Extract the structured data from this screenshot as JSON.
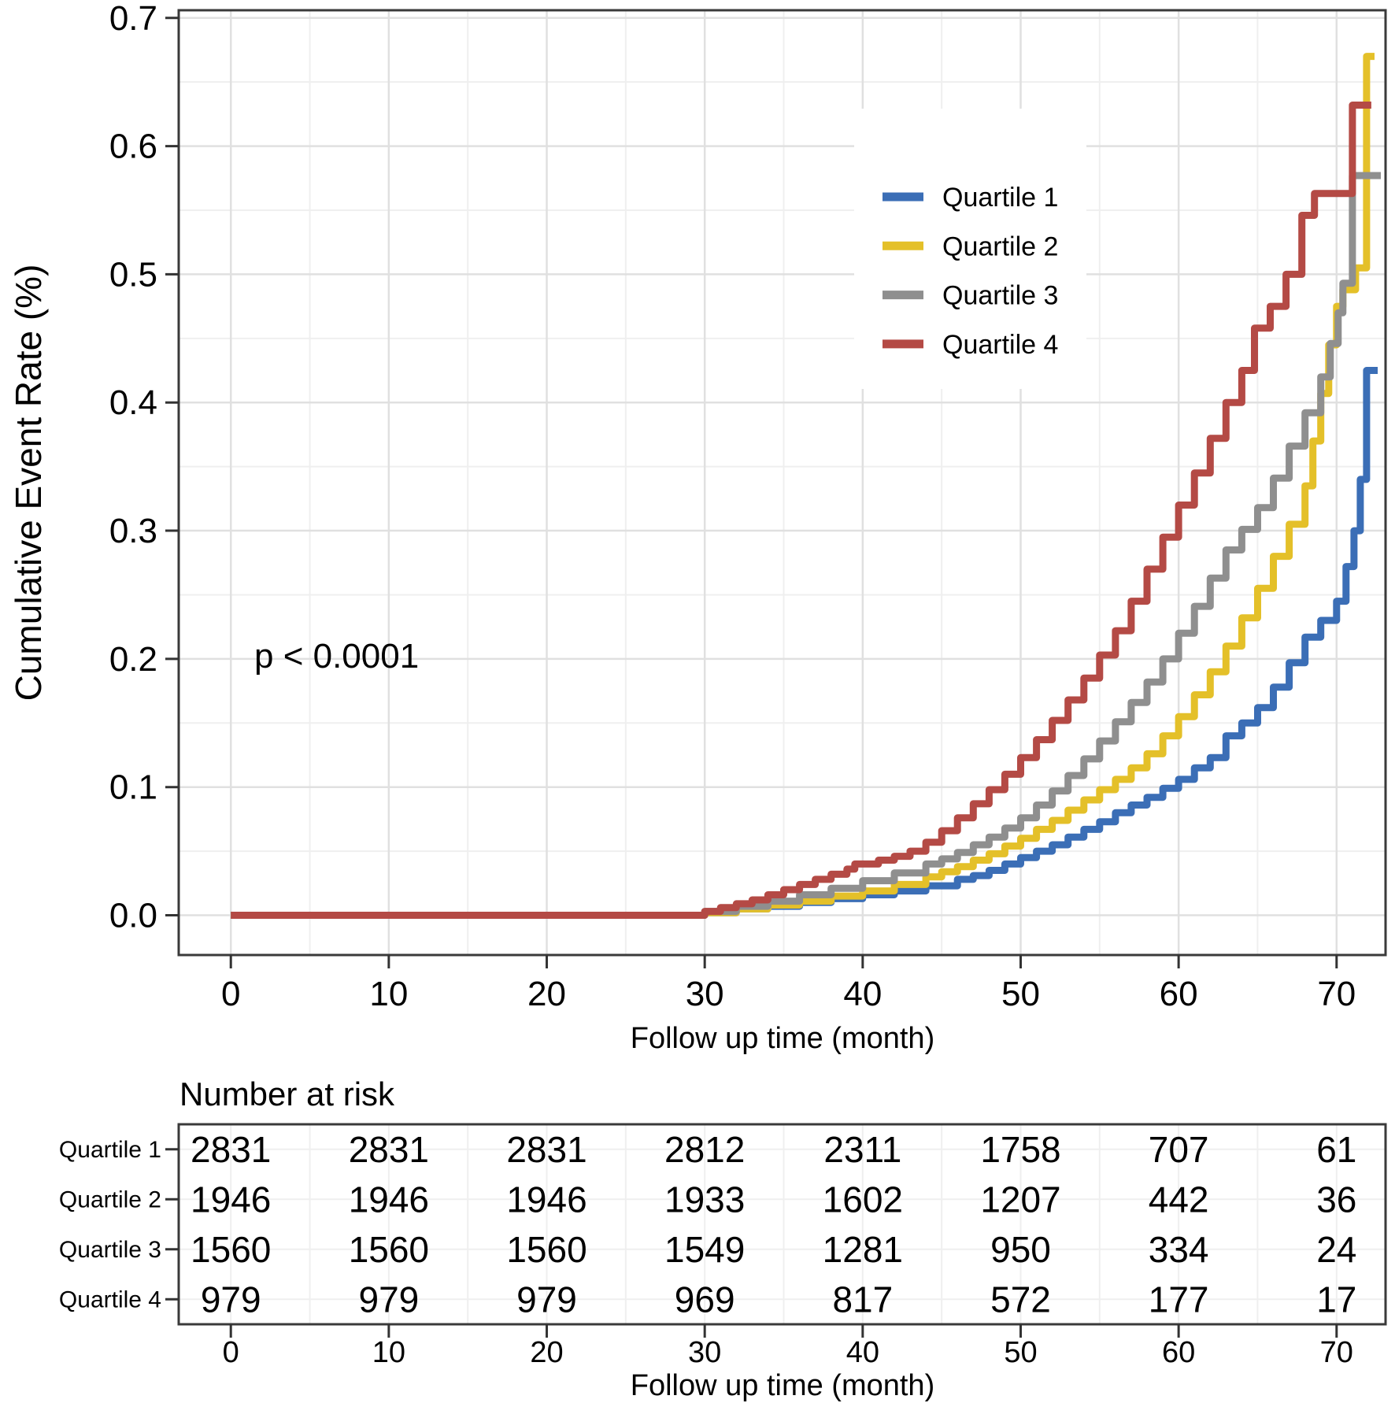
{
  "chart_data": {
    "type": "line",
    "subtype": "kaplan-meier-cumulative-incidence-step",
    "title": "",
    "xlabel": "Follow up time (month)",
    "ylabel": "Cumulative Event Rate (%)",
    "annotation": "p < 0.0001",
    "xlim": [
      -3.3,
      73.1
    ],
    "ylim": [
      -0.031,
      0.706
    ],
    "x_ticks": [
      0,
      10,
      20,
      30,
      40,
      50,
      60,
      70
    ],
    "x_minor_ticks": [
      5,
      15,
      25,
      35,
      45,
      55,
      65
    ],
    "y_ticks": [
      0.0,
      0.1,
      0.2,
      0.3,
      0.4,
      0.5,
      0.6,
      0.7
    ],
    "y_tick_labels": [
      "0.0",
      "0.1",
      "0.2",
      "0.3",
      "0.4",
      "0.5",
      "0.6",
      "0.7"
    ],
    "y_minor_ticks": [
      0.05,
      0.15,
      0.25,
      0.35,
      0.45,
      0.55,
      0.65
    ],
    "grid": true,
    "legend_position": "inside-top-right",
    "series": [
      {
        "name": "Quartile 1",
        "color": "#3B6EB6",
        "points": [
          [
            0,
            0
          ],
          [
            29,
            0
          ],
          [
            30,
            0.002
          ],
          [
            32,
            0.005
          ],
          [
            34,
            0.007
          ],
          [
            36,
            0.01
          ],
          [
            38,
            0.013
          ],
          [
            40,
            0.016
          ],
          [
            42,
            0.019
          ],
          [
            44,
            0.023
          ],
          [
            46,
            0.028
          ],
          [
            47,
            0.031
          ],
          [
            48,
            0.035
          ],
          [
            49,
            0.04
          ],
          [
            50,
            0.045
          ],
          [
            51,
            0.05
          ],
          [
            52,
            0.055
          ],
          [
            53,
            0.061
          ],
          [
            54,
            0.067
          ],
          [
            55,
            0.073
          ],
          [
            56,
            0.08
          ],
          [
            57,
            0.086
          ],
          [
            58,
            0.092
          ],
          [
            59,
            0.099
          ],
          [
            60,
            0.106
          ],
          [
            61,
            0.115
          ],
          [
            62,
            0.123
          ],
          [
            63,
            0.14
          ],
          [
            64,
            0.15
          ],
          [
            65,
            0.162
          ],
          [
            66,
            0.178
          ],
          [
            67,
            0.197
          ],
          [
            68,
            0.217
          ],
          [
            69,
            0.23
          ],
          [
            70,
            0.245
          ],
          [
            70.6,
            0.272
          ],
          [
            71.1,
            0.3
          ],
          [
            71.5,
            0.34
          ],
          [
            71.9,
            0.425
          ],
          [
            72.6,
            0.425
          ]
        ]
      },
      {
        "name": "Quartile 2",
        "color": "#E4C029",
        "points": [
          [
            0,
            0
          ],
          [
            29,
            0
          ],
          [
            30,
            0.002
          ],
          [
            32,
            0.005
          ],
          [
            34,
            0.008
          ],
          [
            36,
            0.011
          ],
          [
            38,
            0.015
          ],
          [
            40,
            0.019
          ],
          [
            42,
            0.024
          ],
          [
            44,
            0.03
          ],
          [
            45,
            0.034
          ],
          [
            46,
            0.038
          ],
          [
            47,
            0.043
          ],
          [
            48,
            0.048
          ],
          [
            49,
            0.054
          ],
          [
            50,
            0.06
          ],
          [
            51,
            0.067
          ],
          [
            52,
            0.074
          ],
          [
            53,
            0.082
          ],
          [
            54,
            0.09
          ],
          [
            55,
            0.098
          ],
          [
            56,
            0.106
          ],
          [
            57,
            0.115
          ],
          [
            58,
            0.126
          ],
          [
            59,
            0.14
          ],
          [
            60,
            0.155
          ],
          [
            61,
            0.172
          ],
          [
            62,
            0.19
          ],
          [
            63,
            0.21
          ],
          [
            64,
            0.232
          ],
          [
            65,
            0.255
          ],
          [
            66,
            0.28
          ],
          [
            67,
            0.305
          ],
          [
            68,
            0.335
          ],
          [
            68.5,
            0.37
          ],
          [
            69,
            0.407
          ],
          [
            69.5,
            0.445
          ],
          [
            70,
            0.475
          ],
          [
            70.4,
            0.488
          ],
          [
            71.2,
            0.505
          ],
          [
            71.9,
            0.67
          ],
          [
            72.4,
            0.67
          ]
        ]
      },
      {
        "name": "Quartile 3",
        "color": "#8F8F8F",
        "points": [
          [
            0,
            0
          ],
          [
            29,
            0
          ],
          [
            30,
            0.003
          ],
          [
            32,
            0.007
          ],
          [
            34,
            0.011
          ],
          [
            36,
            0.016
          ],
          [
            38,
            0.021
          ],
          [
            40,
            0.027
          ],
          [
            42,
            0.033
          ],
          [
            44,
            0.04
          ],
          [
            45,
            0.044
          ],
          [
            46,
            0.049
          ],
          [
            47,
            0.055
          ],
          [
            48,
            0.061
          ],
          [
            49,
            0.068
          ],
          [
            50,
            0.076
          ],
          [
            51,
            0.086
          ],
          [
            52,
            0.097
          ],
          [
            53,
            0.109
          ],
          [
            54,
            0.122
          ],
          [
            55,
            0.136
          ],
          [
            56,
            0.151
          ],
          [
            57,
            0.166
          ],
          [
            58,
            0.182
          ],
          [
            59,
            0.2
          ],
          [
            60,
            0.22
          ],
          [
            61,
            0.241
          ],
          [
            62,
            0.263
          ],
          [
            63,
            0.285
          ],
          [
            64,
            0.301
          ],
          [
            65,
            0.318
          ],
          [
            66,
            0.341
          ],
          [
            67,
            0.366
          ],
          [
            68,
            0.392
          ],
          [
            69,
            0.42
          ],
          [
            69.6,
            0.446
          ],
          [
            70.1,
            0.47
          ],
          [
            70.4,
            0.493
          ],
          [
            71.0,
            0.577
          ],
          [
            72.8,
            0.577
          ]
        ]
      },
      {
        "name": "Quartile 4",
        "color": "#B44A45",
        "points": [
          [
            0,
            0
          ],
          [
            29,
            0
          ],
          [
            30,
            0.003
          ],
          [
            31,
            0.006
          ],
          [
            32,
            0.009
          ],
          [
            33,
            0.012
          ],
          [
            34,
            0.016
          ],
          [
            35,
            0.02
          ],
          [
            36,
            0.024
          ],
          [
            37,
            0.028
          ],
          [
            38,
            0.032
          ],
          [
            39,
            0.036
          ],
          [
            39.5,
            0.04
          ],
          [
            41,
            0.043
          ],
          [
            42,
            0.046
          ],
          [
            43,
            0.05
          ],
          [
            44,
            0.057
          ],
          [
            45,
            0.066
          ],
          [
            46,
            0.076
          ],
          [
            47,
            0.087
          ],
          [
            48,
            0.098
          ],
          [
            49,
            0.11
          ],
          [
            50,
            0.123
          ],
          [
            51,
            0.137
          ],
          [
            52,
            0.152
          ],
          [
            53,
            0.168
          ],
          [
            54,
            0.185
          ],
          [
            55,
            0.203
          ],
          [
            56,
            0.222
          ],
          [
            57,
            0.245
          ],
          [
            58,
            0.27
          ],
          [
            59,
            0.295
          ],
          [
            60,
            0.32
          ],
          [
            61,
            0.345
          ],
          [
            62,
            0.372
          ],
          [
            63,
            0.4
          ],
          [
            64,
            0.425
          ],
          [
            64.8,
            0.458
          ],
          [
            65.8,
            0.475
          ],
          [
            66.8,
            0.5
          ],
          [
            67.8,
            0.546
          ],
          [
            68.6,
            0.563
          ],
          [
            71.0,
            0.632
          ],
          [
            72.2,
            0.632
          ]
        ]
      }
    ]
  },
  "legend": {
    "entries": [
      {
        "label": "Quartile 1",
        "color": "#3B6EB6"
      },
      {
        "label": "Quartile 2",
        "color": "#E4C029"
      },
      {
        "label": "Quartile 3",
        "color": "#8F8F8F"
      },
      {
        "label": "Quartile 4",
        "color": "#B44A45"
      }
    ]
  },
  "risk_table": {
    "title": "Number at risk",
    "axis_label": "Follow up time (month)",
    "time_points": [
      0,
      10,
      20,
      30,
      40,
      50,
      60,
      70
    ],
    "rows": [
      {
        "label": "Quartile 1",
        "color": "#3B6EB6",
        "counts": [
          2831,
          2831,
          2831,
          2812,
          2311,
          1758,
          707,
          61
        ]
      },
      {
        "label": "Quartile 2",
        "color": "#E4C029",
        "counts": [
          1946,
          1946,
          1946,
          1933,
          1602,
          1207,
          442,
          36
        ]
      },
      {
        "label": "Quartile 3",
        "color": "#8F8F8F",
        "counts": [
          1560,
          1560,
          1560,
          1549,
          1281,
          950,
          334,
          24
        ]
      },
      {
        "label": "Quartile 4",
        "color": "#B44A45",
        "counts": [
          979,
          979,
          979,
          969,
          817,
          572,
          177,
          17
        ]
      }
    ]
  }
}
